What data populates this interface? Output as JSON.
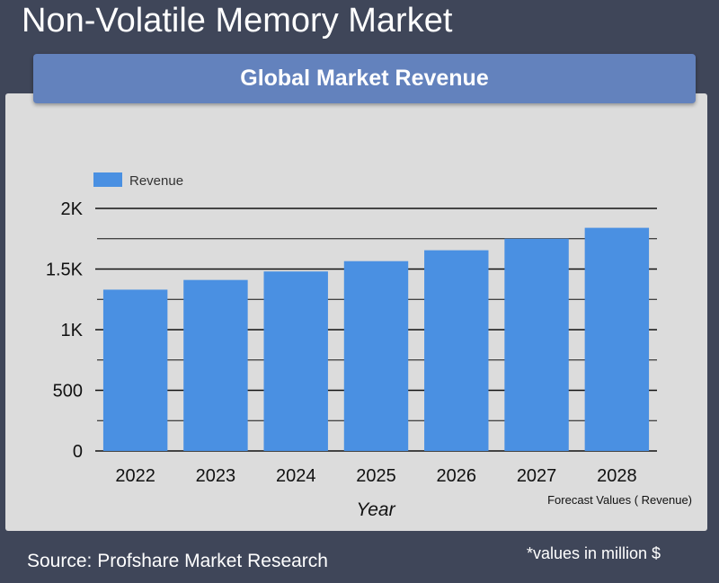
{
  "page_title": "Non-Volatile Memory Market",
  "chart_title": "Global Market Revenue",
  "source": "Source: Profshare Market Research",
  "units_note": "*values in million $",
  "chart_data": {
    "type": "bar",
    "title": "Global Market Revenue",
    "xlabel": "Year",
    "ylabel": "",
    "categories": [
      "2022",
      "2023",
      "2024",
      "2025",
      "2026",
      "2027",
      "2028"
    ],
    "series": [
      {
        "name": "Revenue",
        "values": [
          1330,
          1410,
          1480,
          1565,
          1655,
          1750,
          1840
        ]
      }
    ],
    "ylim": [
      0,
      2000
    ],
    "yticks": [
      0,
      500,
      1000,
      1500,
      2000
    ],
    "ytick_labels": [
      "0",
      "500",
      "1K",
      "1.5K",
      "2K"
    ],
    "grid": true,
    "legend_position": "top-left",
    "annotation": "Forecast Values ( Revenue)",
    "colors": {
      "bar": "#4a90e2",
      "grid": "#111111"
    }
  }
}
